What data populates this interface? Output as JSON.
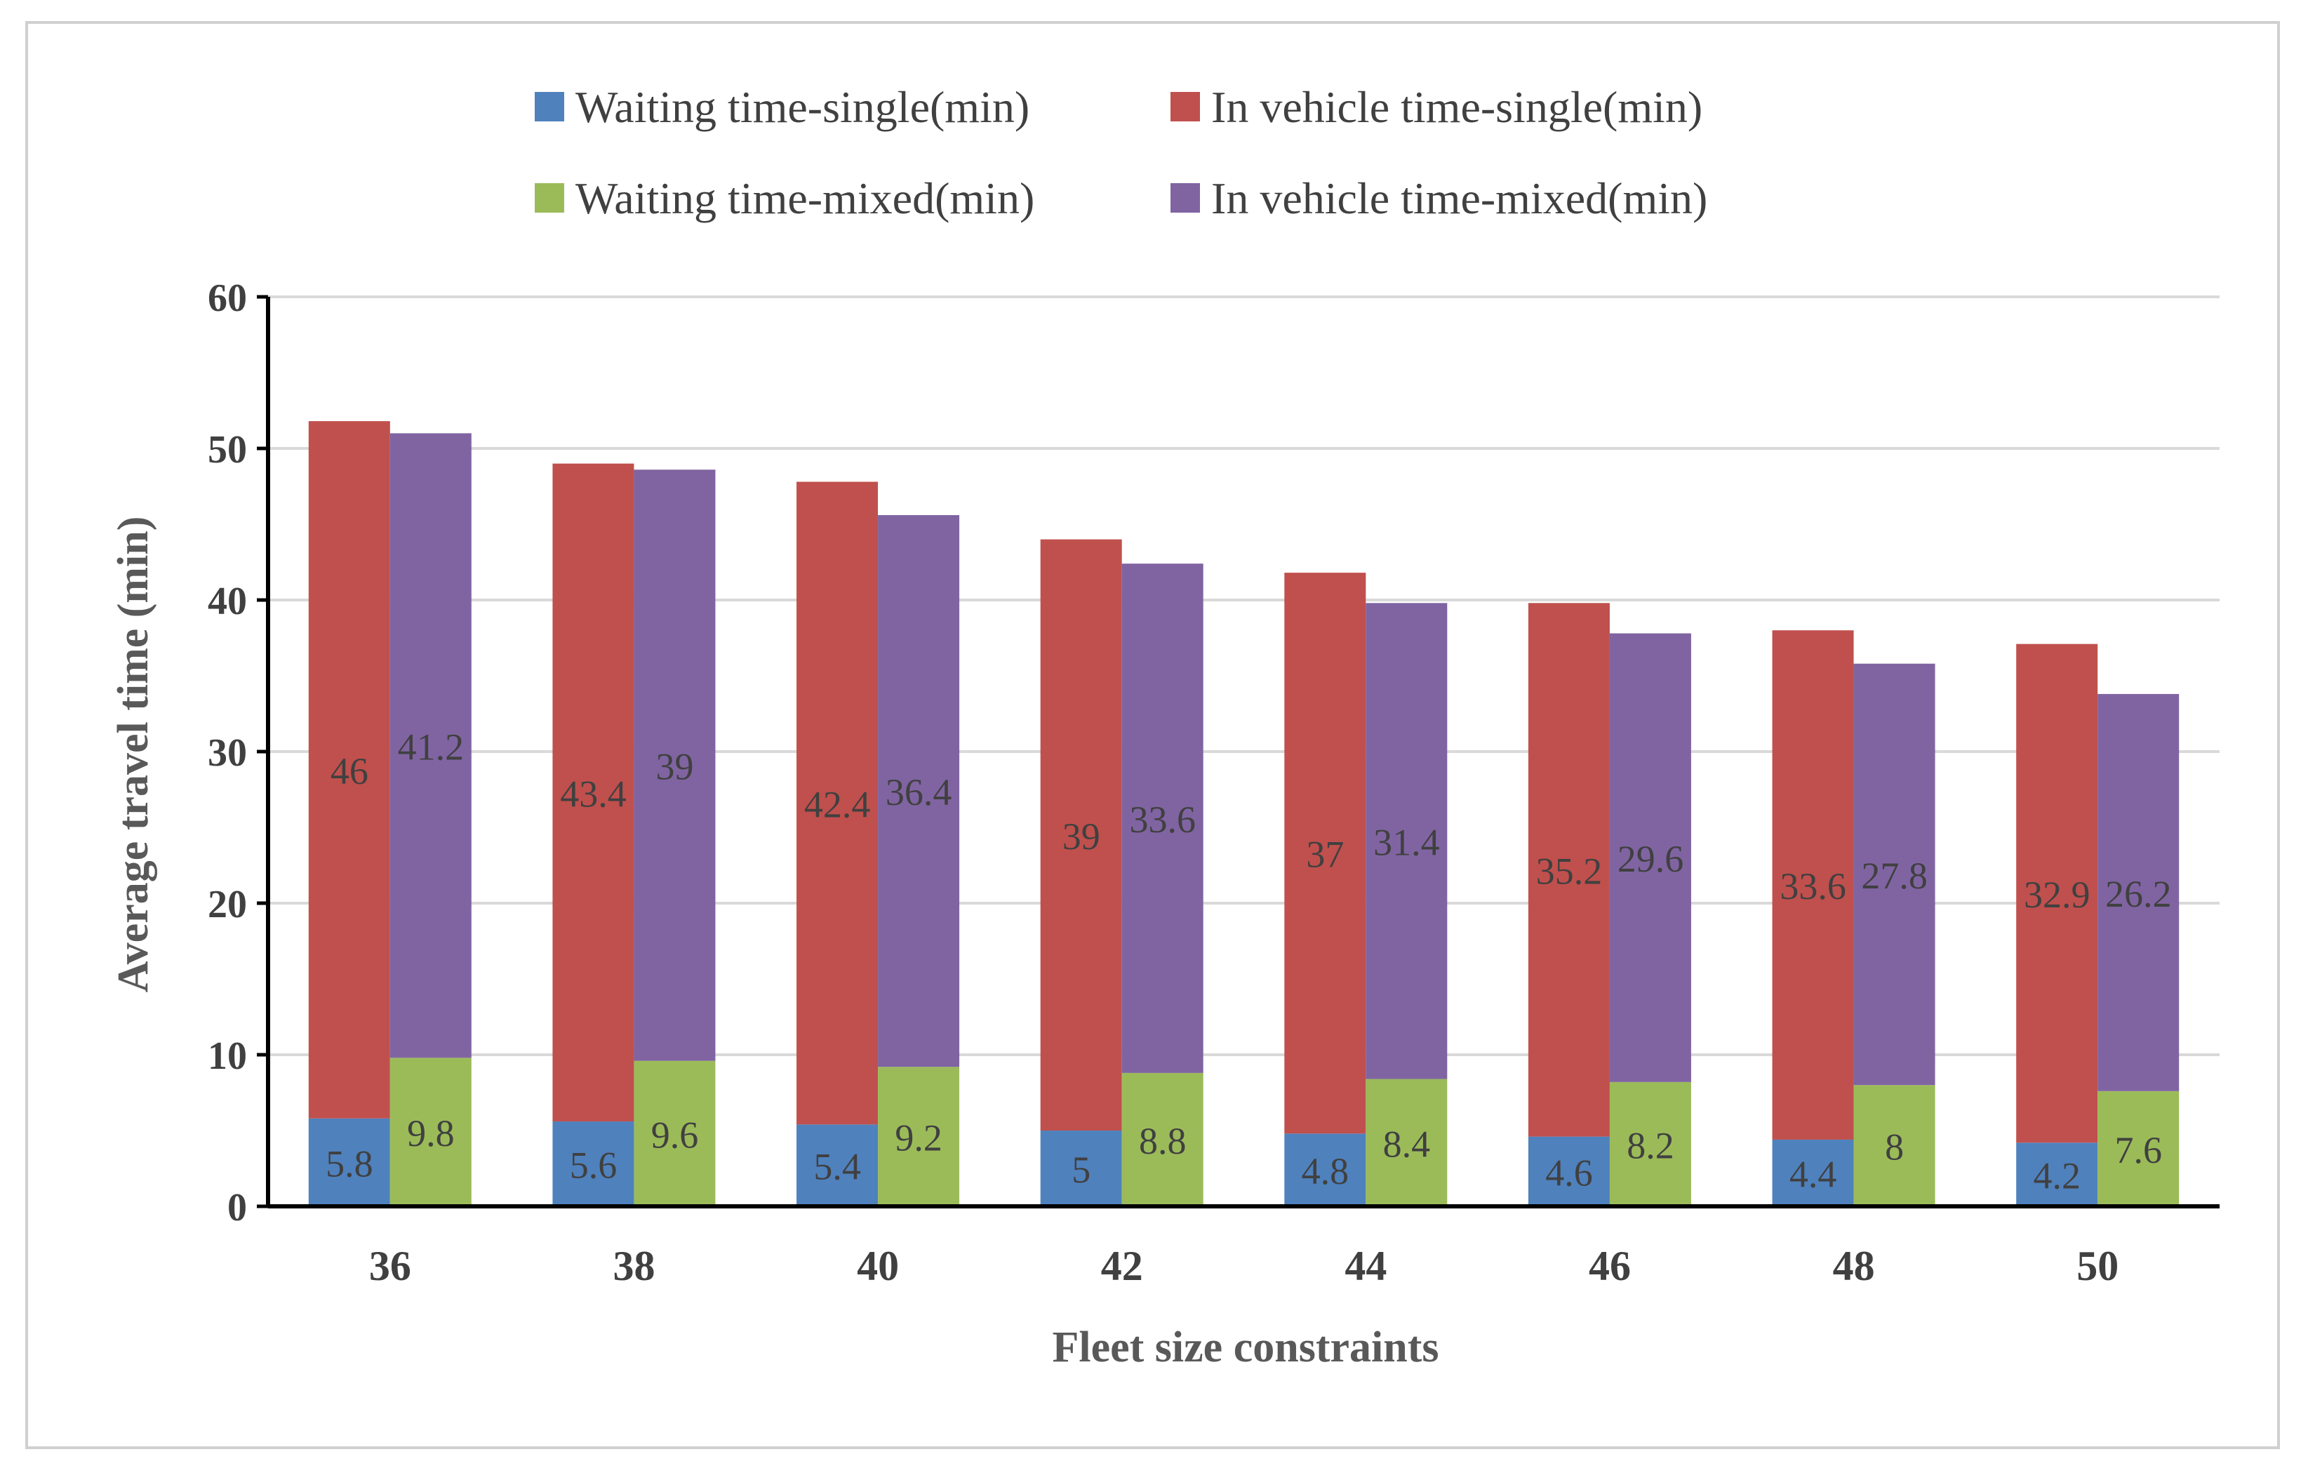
{
  "chart_data": {
    "type": "bar",
    "stacked": true,
    "grouped": true,
    "xlabel": "Fleet size constraints",
    "ylabel": "Average travel time (min)",
    "ylim": [
      0,
      60
    ],
    "yticks": [
      0,
      10,
      20,
      30,
      40,
      50,
      60
    ],
    "grid": true,
    "legend_position": "top",
    "categories": [
      "36",
      "38",
      "40",
      "42",
      "44",
      "46",
      "48",
      "50"
    ],
    "stacks": [
      {
        "name": "single",
        "series": [
          {
            "name": "Waiting time-single(min)",
            "color": "#4f81bd",
            "values": [
              5.8,
              5.6,
              5.4,
              5,
              4.8,
              4.6,
              4.4,
              4.2
            ]
          },
          {
            "name": "In vehicle time-single(min)",
            "color": "#c0504d",
            "values": [
              46,
              43.4,
              42.4,
              39,
              37,
              35.2,
              33.6,
              32.9
            ]
          }
        ]
      },
      {
        "name": "mixed",
        "series": [
          {
            "name": "Waiting time-mixed(min)",
            "color": "#9bbb59",
            "values": [
              9.8,
              9.6,
              9.2,
              8.8,
              8.4,
              8.2,
              8,
              7.6
            ]
          },
          {
            "name": "In vehicle time-mixed(min)",
            "color": "#8064a2",
            "values": [
              41.2,
              39,
              36.4,
              33.6,
              31.4,
              29.6,
              27.8,
              26.2
            ]
          }
        ]
      }
    ],
    "legend": [
      {
        "name": "Waiting time-single(min)",
        "color": "#4f81bd"
      },
      {
        "name": "In vehicle time-single(min)",
        "color": "#c0504d"
      },
      {
        "name": "Waiting time-mixed(min)",
        "color": "#9bbb59"
      },
      {
        "name": "In vehicle time-mixed(min)",
        "color": "#8064a2"
      }
    ]
  }
}
